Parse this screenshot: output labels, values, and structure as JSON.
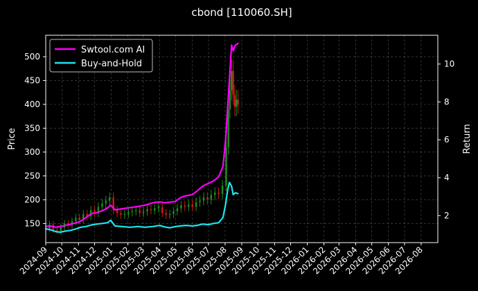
{
  "chart_data": {
    "type": "line",
    "title": "cbond [110060.SH]",
    "ylabel": "Price",
    "y2label": "Return",
    "ylim": [
      110,
      545
    ],
    "y2lim": [
      0.57,
      11.52
    ],
    "yticks": [
      150,
      200,
      250,
      300,
      350,
      400,
      450,
      500
    ],
    "y2ticks": [
      2,
      4,
      6,
      8,
      10
    ],
    "xrange": [
      "2024-09-01",
      "2026-09-01"
    ],
    "xticks": [
      "2024-09",
      "2024-10",
      "2024-11",
      "2024-12",
      "2025-01",
      "2025-02",
      "2025-03",
      "2025-04",
      "2025-05",
      "2025-06",
      "2025-07",
      "2025-08",
      "2025-09",
      "2025-10",
      "2025-11",
      "2025-12",
      "2026-01",
      "2026-02",
      "2026-03",
      "2026-04",
      "2026-05",
      "2026-06",
      "2026-07",
      "2026-08"
    ],
    "grid": true,
    "legend_position": "top-left",
    "background": "#000000",
    "series": [
      {
        "name": "Swtool.com AI",
        "axis": "right",
        "color": "#ff00ff",
        "points": [
          [
            "2024-09-01",
            1.42
          ],
          [
            "2024-09-10",
            1.45
          ],
          [
            "2024-09-20",
            1.38
          ],
          [
            "2024-09-28",
            1.42
          ],
          [
            "2024-10-08",
            1.48
          ],
          [
            "2024-10-18",
            1.55
          ],
          [
            "2024-10-28",
            1.62
          ],
          [
            "2024-11-05",
            1.7
          ],
          [
            "2024-11-15",
            1.9
          ],
          [
            "2024-11-25",
            2.1
          ],
          [
            "2024-12-05",
            2.15
          ],
          [
            "2024-12-15",
            2.25
          ],
          [
            "2024-12-25",
            2.4
          ],
          [
            "2024-12-31",
            2.55
          ],
          [
            "2025-01-08",
            2.3
          ],
          [
            "2025-01-20",
            2.35
          ],
          [
            "2025-02-05",
            2.42
          ],
          [
            "2025-02-20",
            2.48
          ],
          [
            "2025-03-05",
            2.55
          ],
          [
            "2025-03-20",
            2.68
          ],
          [
            "2025-04-01",
            2.72
          ],
          [
            "2025-04-10",
            2.68
          ],
          [
            "2025-04-20",
            2.7
          ],
          [
            "2025-05-01",
            2.75
          ],
          [
            "2025-05-10",
            2.95
          ],
          [
            "2025-05-20",
            3.05
          ],
          [
            "2025-06-01",
            3.1
          ],
          [
            "2025-06-10",
            3.3
          ],
          [
            "2025-06-20",
            3.55
          ],
          [
            "2025-07-01",
            3.7
          ],
          [
            "2025-07-10",
            3.82
          ],
          [
            "2025-07-20",
            4.05
          ],
          [
            "2025-07-28",
            4.6
          ],
          [
            "2025-08-02",
            6.0
          ],
          [
            "2025-08-06",
            7.8
          ],
          [
            "2025-08-09",
            9.2
          ],
          [
            "2025-08-13",
            11.0
          ],
          [
            "2025-08-16",
            10.7
          ],
          [
            "2025-08-20",
            11.0
          ],
          [
            "2025-08-26",
            11.1
          ]
        ]
      },
      {
        "name": "Buy-and-Hold",
        "axis": "right",
        "color": "#18e8f0",
        "points": [
          [
            "2024-09-01",
            1.3
          ],
          [
            "2024-09-10",
            1.25
          ],
          [
            "2024-09-20",
            1.15
          ],
          [
            "2024-09-28",
            1.12
          ],
          [
            "2024-10-08",
            1.18
          ],
          [
            "2024-10-18",
            1.22
          ],
          [
            "2024-10-28",
            1.3
          ],
          [
            "2024-11-05",
            1.38
          ],
          [
            "2024-11-15",
            1.42
          ],
          [
            "2024-11-25",
            1.5
          ],
          [
            "2024-12-05",
            1.55
          ],
          [
            "2024-12-15",
            1.58
          ],
          [
            "2024-12-25",
            1.62
          ],
          [
            "2024-12-31",
            1.75
          ],
          [
            "2025-01-08",
            1.45
          ],
          [
            "2025-01-20",
            1.42
          ],
          [
            "2025-02-05",
            1.38
          ],
          [
            "2025-02-20",
            1.42
          ],
          [
            "2025-03-05",
            1.38
          ],
          [
            "2025-03-20",
            1.42
          ],
          [
            "2025-04-01",
            1.48
          ],
          [
            "2025-04-10",
            1.4
          ],
          [
            "2025-04-20",
            1.35
          ],
          [
            "2025-05-01",
            1.42
          ],
          [
            "2025-05-10",
            1.45
          ],
          [
            "2025-05-20",
            1.48
          ],
          [
            "2025-06-01",
            1.45
          ],
          [
            "2025-06-10",
            1.48
          ],
          [
            "2025-06-20",
            1.55
          ],
          [
            "2025-07-01",
            1.52
          ],
          [
            "2025-07-10",
            1.58
          ],
          [
            "2025-07-20",
            1.62
          ],
          [
            "2025-07-28",
            1.9
          ],
          [
            "2025-08-02",
            2.6
          ],
          [
            "2025-08-06",
            3.4
          ],
          [
            "2025-08-09",
            3.75
          ],
          [
            "2025-08-13",
            3.55
          ],
          [
            "2025-08-16",
            3.1
          ],
          [
            "2025-08-20",
            3.2
          ],
          [
            "2025-08-26",
            3.15
          ]
        ]
      }
    ],
    "candles": {
      "axis": "left",
      "up_color": "#1f8f1f",
      "down_color": "#d01a1a",
      "points": [
        [
          "2024-09-01",
          140
        ],
        [
          "2024-09-08",
          148
        ],
        [
          "2024-09-15",
          137
        ],
        [
          "2024-09-22",
          135
        ],
        [
          "2024-09-29",
          142
        ],
        [
          "2024-10-06",
          150
        ],
        [
          "2024-10-13",
          147
        ],
        [
          "2024-10-20",
          155
        ],
        [
          "2024-10-27",
          162
        ],
        [
          "2024-11-03",
          158
        ],
        [
          "2024-11-10",
          170
        ],
        [
          "2024-11-17",
          165
        ],
        [
          "2024-11-24",
          178
        ],
        [
          "2024-12-01",
          172
        ],
        [
          "2024-12-08",
          185
        ],
        [
          "2024-12-15",
          192
        ],
        [
          "2024-12-22",
          198
        ],
        [
          "2024-12-29",
          205
        ],
        [
          "2025-01-05",
          178
        ],
        [
          "2025-01-12",
          172
        ],
        [
          "2025-01-19",
          168
        ],
        [
          "2025-01-26",
          170
        ],
        [
          "2025-02-02",
          174
        ],
        [
          "2025-02-09",
          176
        ],
        [
          "2025-02-16",
          178
        ],
        [
          "2025-02-23",
          172
        ],
        [
          "2025-03-02",
          175
        ],
        [
          "2025-03-09",
          180
        ],
        [
          "2025-03-16",
          178
        ],
        [
          "2025-03-23",
          182
        ],
        [
          "2025-03-30",
          185
        ],
        [
          "2025-04-06",
          172
        ],
        [
          "2025-04-13",
          168
        ],
        [
          "2025-04-20",
          170
        ],
        [
          "2025-04-27",
          176
        ],
        [
          "2025-05-04",
          182
        ],
        [
          "2025-05-11",
          188
        ],
        [
          "2025-05-18",
          185
        ],
        [
          "2025-05-25",
          190
        ],
        [
          "2025-06-01",
          185
        ],
        [
          "2025-06-08",
          195
        ],
        [
          "2025-06-15",
          198
        ],
        [
          "2025-06-22",
          205
        ],
        [
          "2025-06-29",
          200
        ],
        [
          "2025-07-06",
          210
        ],
        [
          "2025-07-13",
          215
        ],
        [
          "2025-07-20",
          212
        ],
        [
          "2025-07-27",
          230
        ],
        [
          "2025-08-03",
          310
        ],
        [
          "2025-08-07",
          390
        ],
        [
          "2025-08-10",
          430
        ],
        [
          "2025-08-13",
          470
        ],
        [
          "2025-08-16",
          420
        ],
        [
          "2025-08-19",
          395
        ],
        [
          "2025-08-22",
          410
        ],
        [
          "2025-08-25",
          400
        ]
      ]
    }
  }
}
